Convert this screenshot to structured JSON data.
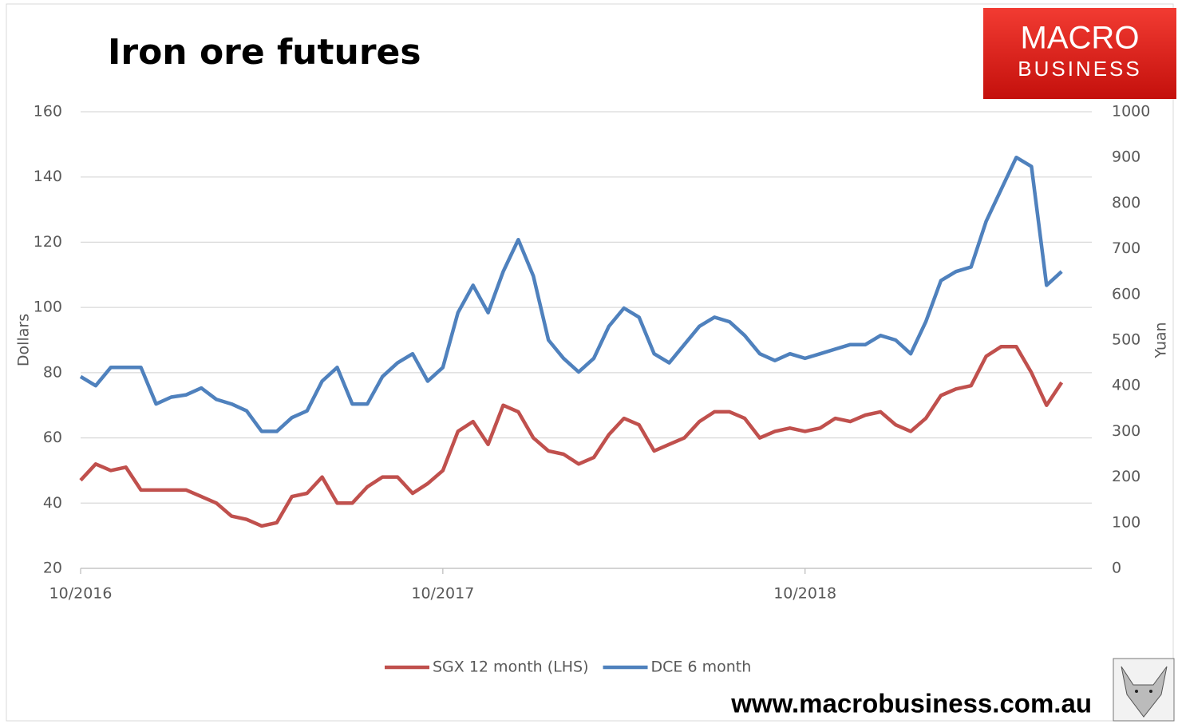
{
  "chart_data": {
    "type": "line",
    "title": "Iron ore futures",
    "y_label": "Dollars",
    "y2_label": "Yuan",
    "categories": [
      "10/2016",
      null,
      null,
      null,
      null,
      null,
      null,
      null,
      null,
      null,
      null,
      null,
      null,
      null,
      null,
      null,
      null,
      null,
      null,
      null,
      null,
      null,
      null,
      null,
      "10/2017",
      null,
      null,
      null,
      null,
      null,
      null,
      null,
      null,
      null,
      null,
      null,
      null,
      null,
      null,
      null,
      null,
      null,
      null,
      null,
      null,
      null,
      null,
      null,
      "10/2018",
      null,
      null,
      null,
      null,
      null,
      null,
      null,
      null,
      null,
      null,
      null,
      null,
      null,
      null,
      null,
      null,
      null,
      null
    ],
    "series": [
      {
        "name": "SGX 12 month (LHS)",
        "color": "#c0504d",
        "axis": "y",
        "values": [
          47,
          52,
          50,
          51,
          44,
          44,
          44,
          44,
          42,
          40,
          36,
          35,
          33,
          34,
          42,
          43,
          48,
          40,
          40,
          45,
          48,
          48,
          43,
          46,
          50,
          62,
          65,
          58,
          70,
          68,
          60,
          56,
          55,
          52,
          54,
          61,
          66,
          64,
          56,
          58,
          60,
          65,
          68,
          68,
          66,
          60,
          62,
          63,
          62,
          63,
          66,
          65,
          67,
          68,
          64,
          62,
          66,
          73,
          75,
          76,
          85,
          88,
          88,
          80,
          70,
          77,
          null
        ]
      },
      {
        "name": "DCE 6 month",
        "color": "#4f81bd",
        "axis": "y2",
        "values": [
          420,
          400,
          440,
          440,
          440,
          360,
          375,
          380,
          395,
          370,
          360,
          345,
          300,
          300,
          330,
          345,
          410,
          440,
          360,
          360,
          420,
          450,
          470,
          410,
          440,
          560,
          620,
          560,
          650,
          720,
          640,
          500,
          460,
          430,
          460,
          530,
          570,
          550,
          470,
          450,
          490,
          530,
          550,
          540,
          510,
          470,
          455,
          470,
          460,
          470,
          480,
          490,
          490,
          510,
          500,
          470,
          540,
          630,
          650,
          660,
          760,
          830,
          900,
          880,
          620,
          650,
          null
        ]
      }
    ],
    "ylim": [
      20,
      160
    ],
    "yticks": [
      20,
      40,
      60,
      80,
      100,
      120,
      140,
      160
    ],
    "y2lim": [
      0,
      1000
    ],
    "y2ticks": [
      0,
      100,
      200,
      300,
      400,
      500,
      600,
      700,
      800,
      900,
      1000
    ],
    "grid": true,
    "legend": "bottom"
  },
  "brand": {
    "logo_top": "MACRO",
    "logo_bottom": "BUSINESS",
    "url": "www.macrobusiness.com.au"
  }
}
